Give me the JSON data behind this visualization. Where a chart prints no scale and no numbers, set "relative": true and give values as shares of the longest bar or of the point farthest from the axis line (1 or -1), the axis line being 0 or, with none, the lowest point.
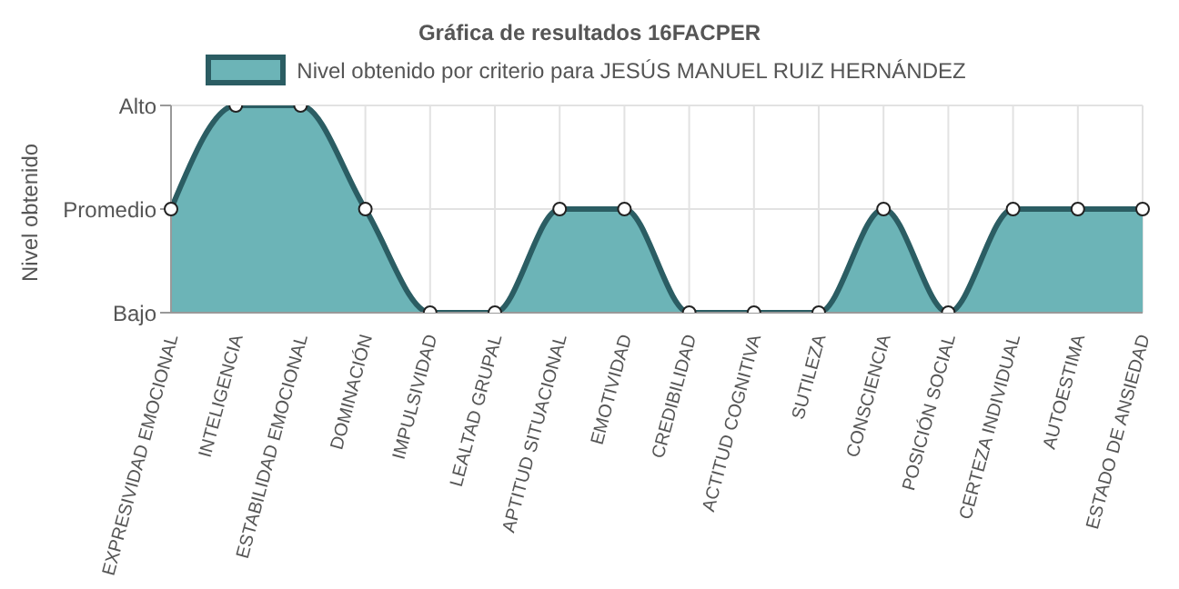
{
  "chart_data": {
    "type": "area",
    "title": "Gráfica de resultados 16FACPER",
    "ylabel": "Nivel obtenido",
    "categories": [
      "EXPRESIVIDAD EMOCIONAL",
      "INTELIGENCIA",
      "ESTABILIDAD EMOCIONAL",
      "DOMINACIÓN",
      "IMPULSIVIDAD",
      "LEALTAD GRUPAL",
      "APTITUD SITUACIONAL",
      "EMOTIVIDAD",
      "CREDIBILIDAD",
      "ACTITUD COGNITIVA",
      "SUTILEZA",
      "CONSCIENCIA",
      "POSICIÓN SOCIAL",
      "CERTEZA INDIVIDUAL",
      "AUTOESTIMA",
      "ESTADO DE ANSIEDAD"
    ],
    "series": [
      {
        "name": "Nivel obtenido por criterio para JESÚS MANUEL RUIZ HERNÁNDEZ",
        "color": "#6cb4b7",
        "values": [
          0.5,
          1,
          1,
          0.5,
          0,
          0,
          0.5,
          0.5,
          0,
          0,
          0,
          0.5,
          0,
          0.5,
          0.5,
          0.5
        ]
      }
    ],
    "relative": true,
    "y_categories": [
      "Alto",
      "Promedio",
      "Bajo"
    ],
    "grid": true,
    "legend": "top",
    "marker": "circle"
  }
}
